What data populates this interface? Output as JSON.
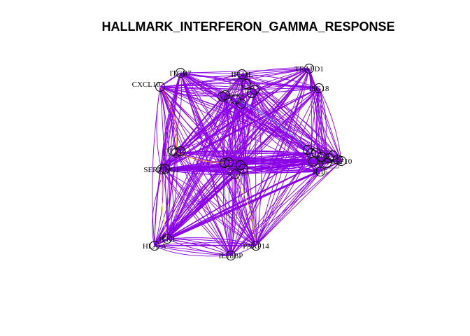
{
  "title": "HALLMARK_INTERFERON_GAMMA_RESPONSE",
  "colors": {
    "edge_main": "#8a00e6",
    "edge_minor_orange": "#ff9900",
    "edge_minor_yellow": "#f2ee2a",
    "edge_minor_cyan": "#66ccee"
  },
  "graph": {
    "nodes": [
      {
        "id": "ITGB7",
        "label": "ITGB7",
        "cluster": "top"
      },
      {
        "id": "IFI44L",
        "label": "IFI44L",
        "cluster": "top"
      },
      {
        "id": "TRAFD1",
        "label": "TRAFD1",
        "cluster": "top"
      },
      {
        "id": "CXCL10",
        "label": "CXCL10",
        "cluster": "top"
      },
      {
        "id": "ISG18",
        "label": "ISG18",
        "cluster": "top"
      },
      {
        "id": "top-hub",
        "label": "",
        "cluster": "top"
      },
      {
        "id": "top-a",
        "label": "",
        "cluster": "top"
      },
      {
        "id": "top-b",
        "label": "",
        "cluster": "top"
      },
      {
        "id": "left-1",
        "label": "",
        "cluster": "left"
      },
      {
        "id": "left-2",
        "label": "",
        "cluster": "left"
      },
      {
        "id": "SERPING1",
        "label": "SERPING1",
        "cluster": "left"
      },
      {
        "id": "mid-1",
        "label": "",
        "cluster": "mid"
      },
      {
        "id": "mid-2",
        "label": "",
        "cluster": "mid"
      },
      {
        "id": "mid-3",
        "label": "",
        "cluster": "mid"
      },
      {
        "id": "right-hub",
        "label": "",
        "cluster": "right"
      },
      {
        "id": "right-a",
        "label": "",
        "cluster": "right"
      },
      {
        "id": "CSF10",
        "label": "CSF10",
        "cluster": "right"
      },
      {
        "id": "IL15",
        "label": "IL15",
        "cluster": "right"
      },
      {
        "id": "ITK1",
        "label": "ITK1",
        "cluster": "bottom"
      },
      {
        "id": "HLA-A",
        "label": "HLA-A",
        "cluster": "bottom"
      },
      {
        "id": "IL18BP",
        "label": "IL18BP",
        "cluster": "bottom"
      },
      {
        "id": "PARP14",
        "label": "PARP14",
        "cluster": "bottom"
      }
    ]
  }
}
